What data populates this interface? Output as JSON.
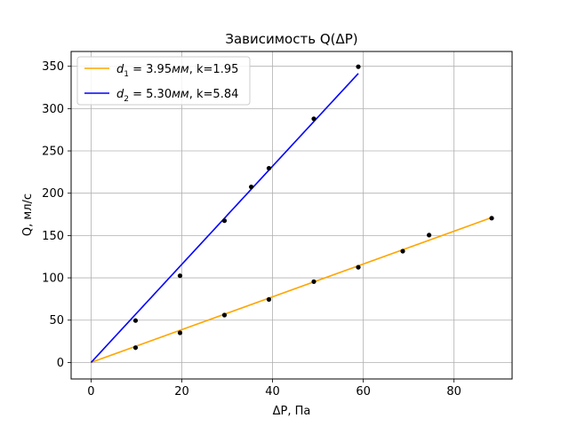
{
  "chart_data": {
    "type": "line",
    "title": "Зависимость Q(ΔP)",
    "xlabel": "ΔP, Па",
    "ylabel": "Q, мл/с",
    "xlim": [
      -4.4,
      92.8
    ],
    "ylim": [
      -19.5,
      367.5
    ],
    "xticks": [
      0,
      20,
      40,
      60,
      80
    ],
    "yticks": [
      0,
      50,
      100,
      150,
      200,
      250,
      300,
      350
    ],
    "grid": true,
    "legend_position": "upper-left",
    "series": [
      {
        "name_parts": [
          "d",
          "1",
          " = 3.95",
          "мм",
          ", k=1.95"
        ],
        "color": "#ffa500",
        "fit_line": {
          "x": [
            0,
            88.3
          ],
          "y": [
            0,
            171.2
          ]
        },
        "points": {
          "x": [
            9.8,
            19.6,
            29.4,
            39.2,
            49.1,
            58.9,
            68.7,
            74.5,
            88.3
          ],
          "y": [
            17.5,
            35,
            56,
            74.5,
            95.5,
            112.5,
            131.5,
            150.5,
            170.5
          ]
        }
      },
      {
        "name_parts": [
          "d",
          "2",
          " = 5.30",
          "мм",
          ", k=5.84"
        ],
        "color": "#0000ff",
        "fit_line": {
          "x": [
            0,
            58.9
          ],
          "y": [
            0,
            341.5
          ]
        },
        "points": {
          "x": [
            9.8,
            19.6,
            29.4,
            35.3,
            39.2,
            49.1,
            58.9
          ],
          "y": [
            49.5,
            102.5,
            167.5,
            207.5,
            229.5,
            288,
            349.5
          ]
        }
      }
    ],
    "marker_color": "#000000"
  }
}
